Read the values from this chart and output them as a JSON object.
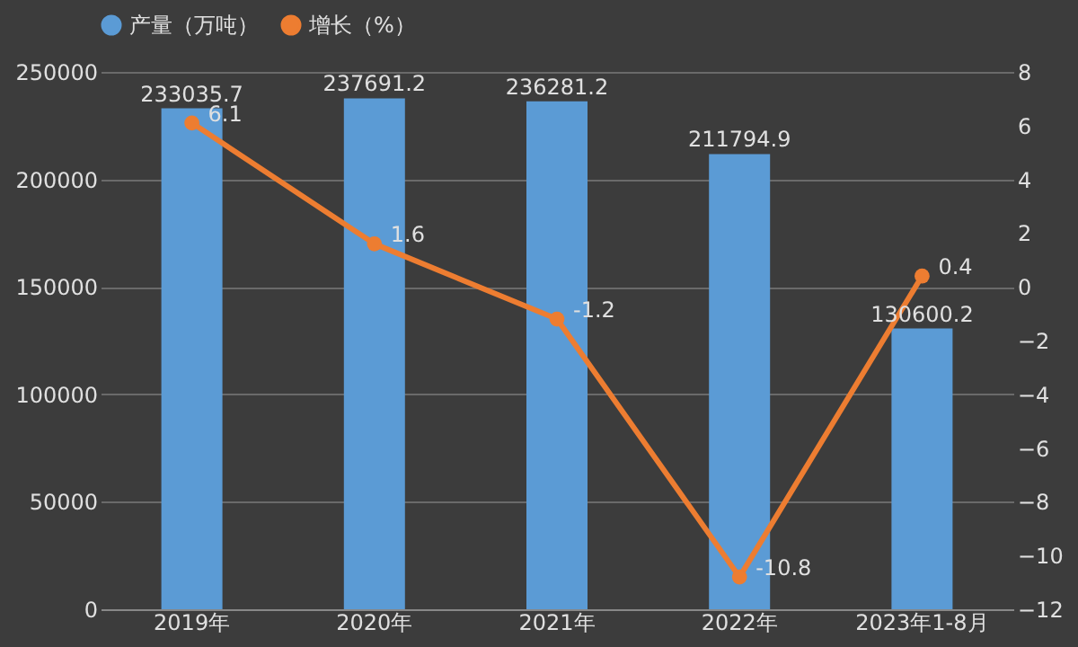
{
  "chart_data": {
    "type": "bar",
    "categories": [
      "2019年",
      "2020年",
      "2021年",
      "2022年",
      "2023年1-8月"
    ],
    "series": [
      {
        "name": "产量（万吨）",
        "color": "#5b9bd5",
        "values": [
          233035.7,
          237691.2,
          236281.2,
          211794.9,
          130600.2
        ]
      },
      {
        "name": "增长（%）",
        "type": "line",
        "axis": "y2",
        "color": "#ed7d31",
        "values": [
          6.1,
          1.6,
          -1.2,
          -10.8,
          0.4
        ]
      }
    ],
    "ylim": [
      0,
      250000
    ],
    "yticks": [
      0,
      50000,
      100000,
      150000,
      200000,
      250000
    ],
    "y2lim": [
      -12,
      8
    ],
    "y2ticks": [
      -12,
      -10,
      -8,
      -6,
      -4,
      -2,
      0,
      2,
      4,
      6,
      8
    ],
    "data_labels": true,
    "legend": "top",
    "grid": "y",
    "marker": "circle"
  }
}
